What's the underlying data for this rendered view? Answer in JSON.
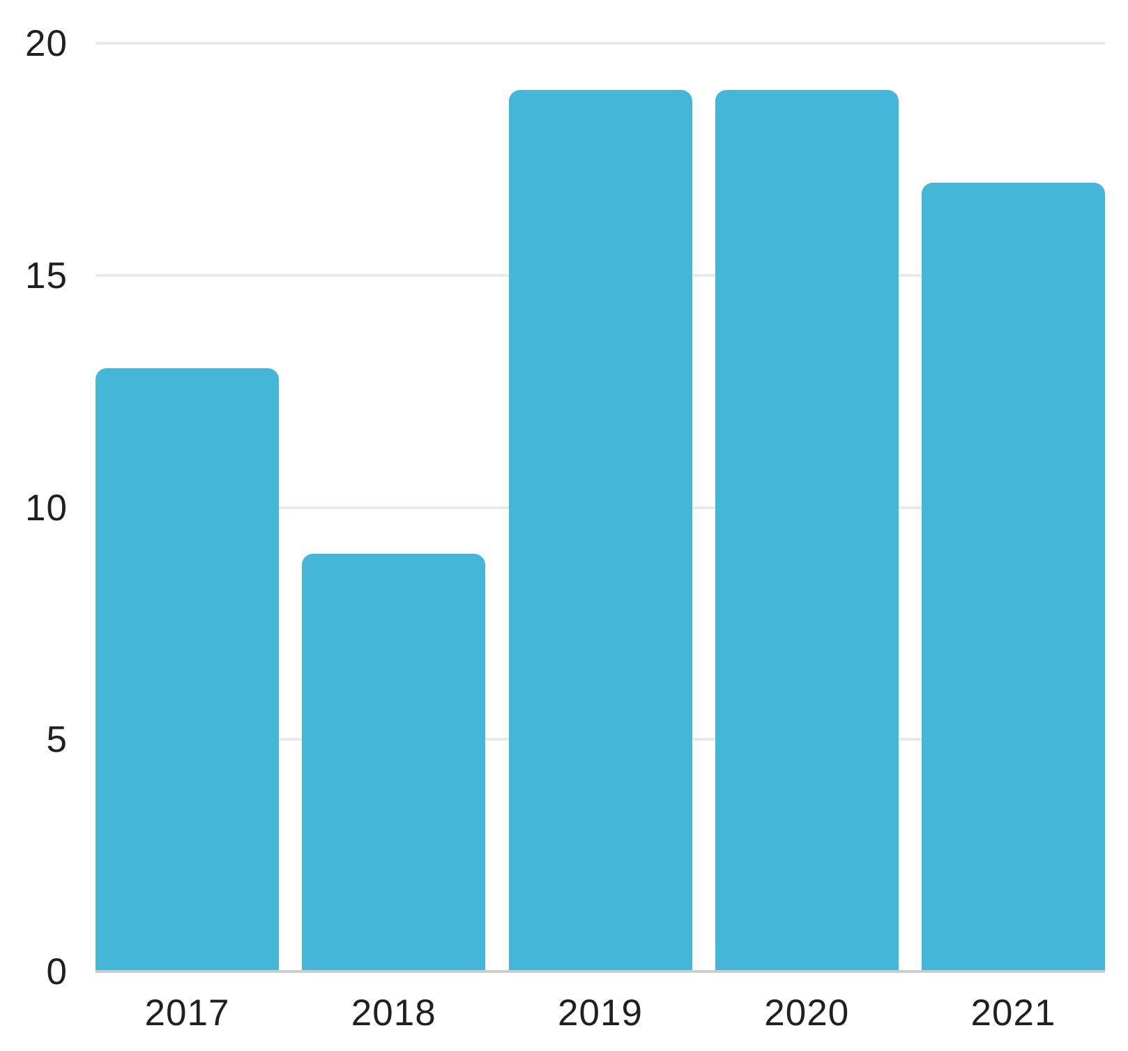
{
  "chart_data": {
    "type": "bar",
    "title": "",
    "xlabel": "",
    "ylabel": "",
    "categories": [
      "2017",
      "2018",
      "2019",
      "2020",
      "2021"
    ],
    "values": [
      13,
      9,
      19,
      19,
      17
    ],
    "ylim": [
      0,
      20
    ],
    "yticks": [
      0,
      5,
      10,
      15,
      20
    ],
    "grid": true,
    "legend": false,
    "colors": {
      "bar": "#44b6d8",
      "gridline": "#e9e9e9",
      "baseline": "#cccccc",
      "label": "#202020",
      "background": "#ffffff"
    }
  }
}
